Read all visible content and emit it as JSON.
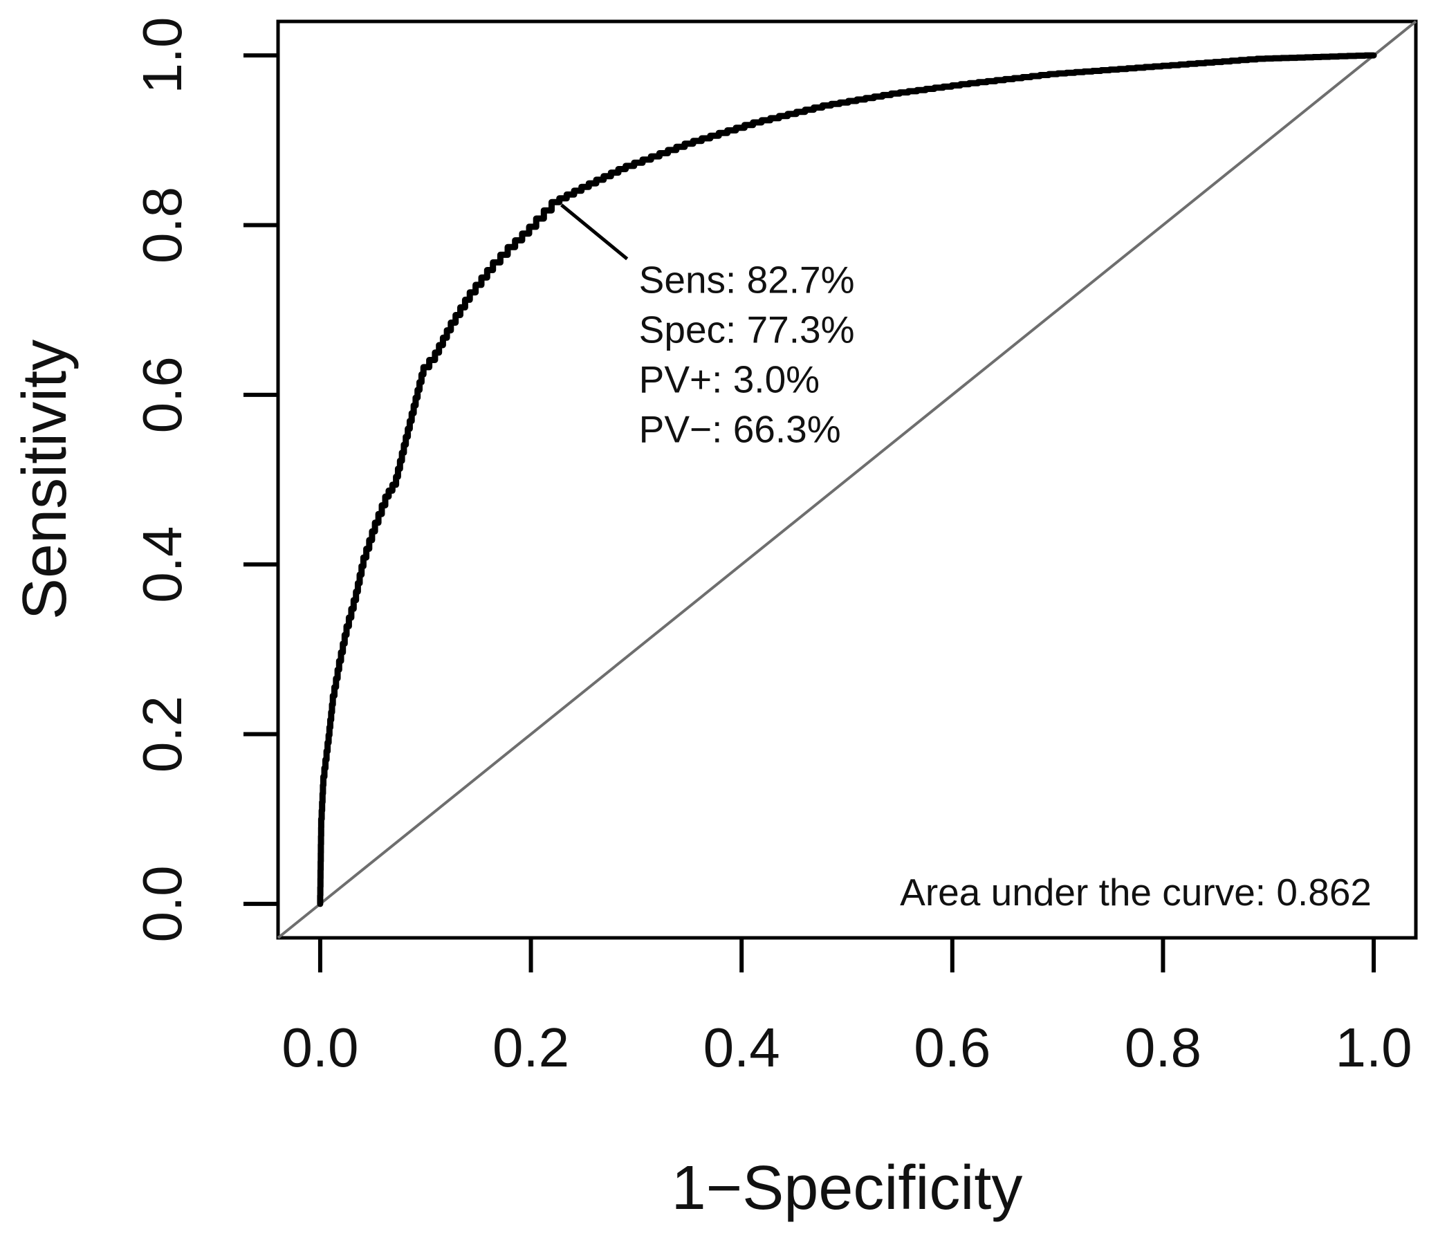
{
  "chart_data": {
    "type": "line",
    "title": "",
    "xlabel": "1−Specificity",
    "ylabel": "Sensitivity",
    "xlim": [
      0,
      1
    ],
    "ylim": [
      0,
      1
    ],
    "grid": false,
    "legend_position": "none",
    "x_ticks": [
      "0.0",
      "0.2",
      "0.4",
      "0.6",
      "0.8",
      "1.0"
    ],
    "y_ticks": [
      "0.0",
      "0.2",
      "0.4",
      "0.6",
      "0.8",
      "1.0"
    ],
    "series": [
      {
        "name": "ROC curve",
        "color": "#000000",
        "points": [
          [
            0,
            0
          ],
          [
            0.001,
            0.09
          ],
          [
            0.003,
            0.14
          ],
          [
            0.008,
            0.19
          ],
          [
            0.012,
            0.235
          ],
          [
            0.018,
            0.276
          ],
          [
            0.025,
            0.317
          ],
          [
            0.034,
            0.358
          ],
          [
            0.041,
            0.398
          ],
          [
            0.052,
            0.439
          ],
          [
            0.065,
            0.48
          ],
          [
            0.072,
            0.494
          ],
          [
            0.085,
            0.56
          ],
          [
            0.098,
            0.624
          ],
          [
            0.109,
            0.641
          ],
          [
            0.124,
            0.676
          ],
          [
            0.142,
            0.712
          ],
          [
            0.164,
            0.747
          ],
          [
            0.185,
            0.774
          ],
          [
            0.205,
            0.798
          ],
          [
            0.227,
            0.827
          ],
          [
            0.255,
            0.845
          ],
          [
            0.29,
            0.866
          ],
          [
            0.354,
            0.896
          ],
          [
            0.419,
            0.921
          ],
          [
            0.485,
            0.941
          ],
          [
            0.55,
            0.955
          ],
          [
            0.616,
            0.966
          ],
          [
            0.7,
            0.978
          ],
          [
            0.766,
            0.984
          ],
          [
            0.832,
            0.99
          ],
          [
            0.897,
            0.996
          ],
          [
            0.95,
            0.998
          ],
          [
            1,
            1
          ]
        ]
      },
      {
        "name": "chance diagonal",
        "color": "#6e6e6e",
        "points": [
          [
            0,
            0
          ],
          [
            1,
            1
          ]
        ]
      }
    ],
    "annotation": {
      "point": [
        0.227,
        0.827
      ],
      "lines": [
        "Sens: 82.7%",
        "Spec: 77.3%",
        "PV+: 3.0%",
        "PV−: 66.3%"
      ]
    },
    "auc_text": "Area under the curve: 0.862"
  }
}
